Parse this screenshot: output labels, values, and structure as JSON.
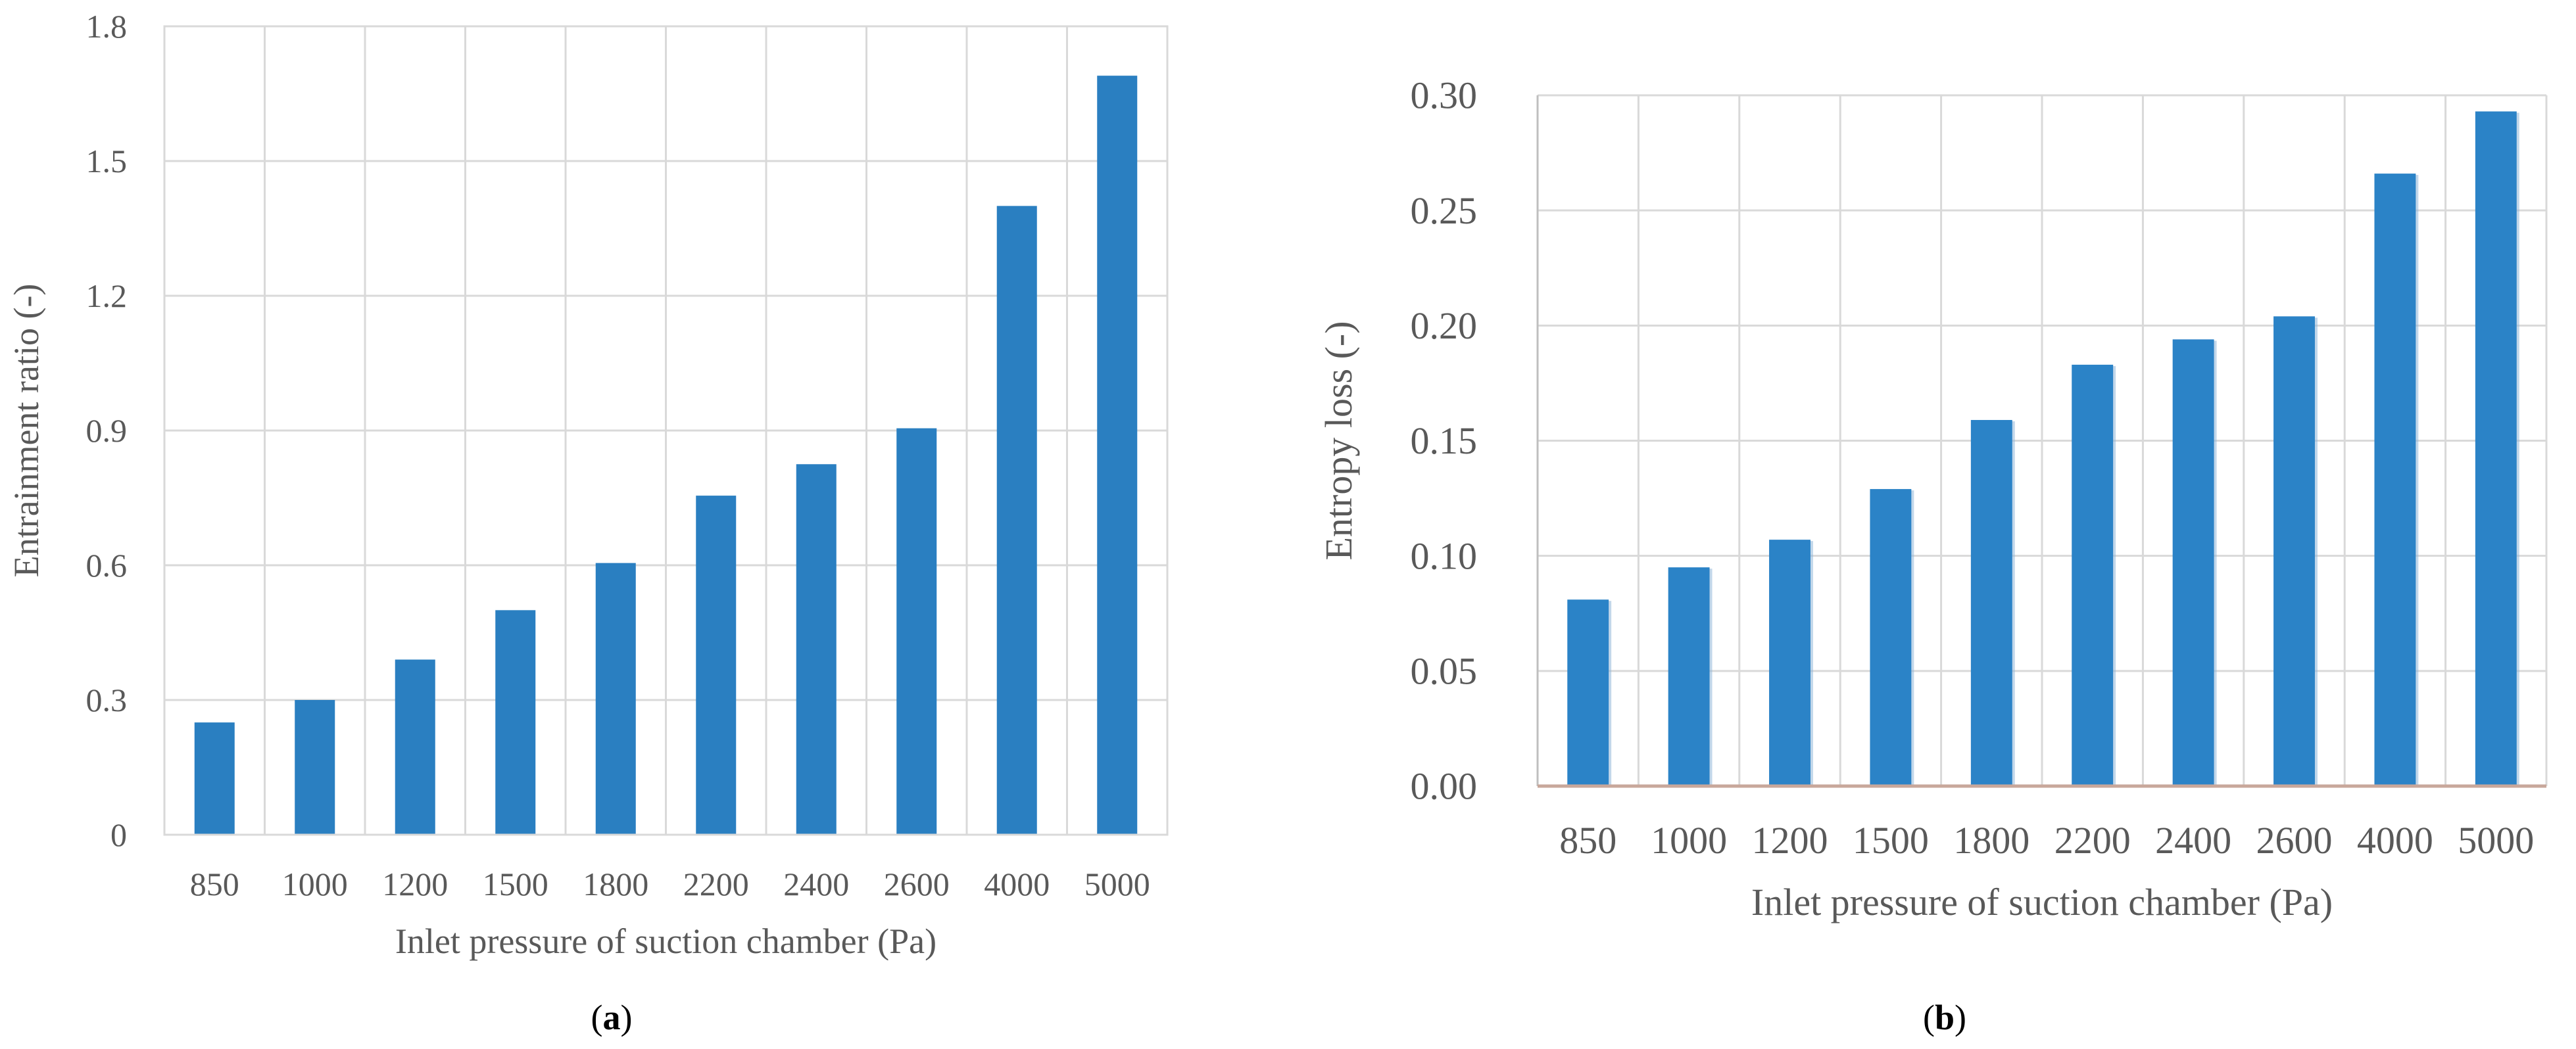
{
  "colors": {
    "bar": "#2a7fc1",
    "bar_b": "#2b83c7",
    "grid": "#d9d9d9",
    "axis_a": "#d9d9d9",
    "axis_b": "#c8a79b",
    "text": "#595959"
  },
  "chart_data": [
    {
      "type": "bar",
      "panel": "a",
      "caption": {
        "open": "(",
        "letter": "a",
        "close": ")"
      },
      "categories": [
        "850",
        "1000",
        "1200",
        "1500",
        "1800",
        "2200",
        "2400",
        "2600",
        "4000",
        "5000"
      ],
      "values": [
        0.25,
        0.3,
        0.39,
        0.5,
        0.605,
        0.755,
        0.825,
        0.905,
        1.4,
        1.69
      ],
      "xlabel": "Inlet pressure of suction chamber (Pa)",
      "ylabel": "Entrainment ratio (-)",
      "ylim": [
        0,
        1.8
      ],
      "yticks": [
        0,
        0.3,
        0.6,
        0.9,
        1.2,
        1.5,
        1.8
      ],
      "ytick_labels": [
        "0",
        "0.3",
        "0.6",
        "0.9",
        "1.2",
        "1.5",
        "1.8"
      ],
      "grid": true
    },
    {
      "type": "bar",
      "panel": "b",
      "caption": {
        "open": "(",
        "letter": "b",
        "close": ")"
      },
      "categories": [
        "850",
        "1000",
        "1200",
        "1500",
        "1800",
        "2200",
        "2400",
        "2600",
        "4000",
        "5000"
      ],
      "values": [
        0.081,
        0.095,
        0.107,
        0.129,
        0.159,
        0.183,
        0.194,
        0.204,
        0.266,
        0.293
      ],
      "xlabel": "Inlet pressure of suction chamber (Pa)",
      "ylabel": "Entropy loss (-)",
      "ylim": [
        0,
        0.3
      ],
      "yticks": [
        0,
        0.05,
        0.1,
        0.15,
        0.2,
        0.25,
        0.3
      ],
      "ytick_labels": [
        "0.00",
        "0.05",
        "0.10",
        "0.15",
        "0.20",
        "0.25",
        "0.30"
      ],
      "grid": true
    }
  ]
}
